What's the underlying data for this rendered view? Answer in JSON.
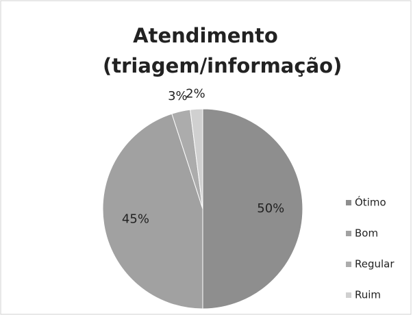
{
  "chart_data": {
    "type": "pie",
    "title": "Atendimento (triagem/informação)",
    "categories": [
      "Ótimo",
      "Bom",
      "Regular",
      "Ruim"
    ],
    "values": [
      50,
      45,
      3,
      2
    ],
    "value_labels": [
      "50%",
      "45%",
      "3%",
      "2%"
    ],
    "colors": [
      "#8e8e8e",
      "#a1a1a1",
      "#acacac",
      "#d0d0d0"
    ],
    "legend": "right"
  }
}
